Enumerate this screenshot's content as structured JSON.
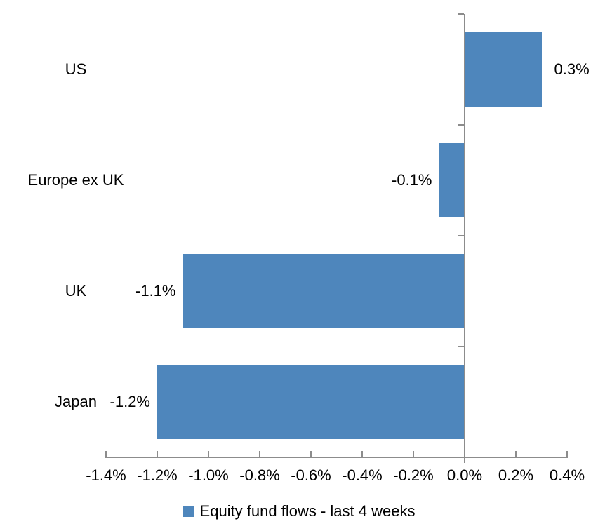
{
  "chart_data": {
    "type": "bar",
    "orientation": "horizontal",
    "title": "",
    "categories": [
      "US",
      "Europe ex UK",
      "UK",
      "Japan"
    ],
    "values": [
      0.3,
      -0.1,
      -1.1,
      -1.2
    ],
    "value_labels": [
      "0.3%",
      "-0.1%",
      "-1.1%",
      "-1.2%"
    ],
    "series_name": "Equity fund flows - last 4 weeks",
    "xlabel": "",
    "ylabel": "",
    "xlim": [
      -1.4,
      0.4
    ],
    "x_tick_values": [
      -1.4,
      -1.2,
      -1.0,
      -0.8,
      -0.6,
      -0.4,
      -0.2,
      0.0,
      0.2,
      0.4
    ],
    "x_tick_labels": [
      "-1.4%",
      "-1.2%",
      "-1.0%",
      "-0.8%",
      "-0.6%",
      "-0.4%",
      "-0.2%",
      "0.0%",
      "0.2%",
      "0.4%"
    ],
    "bar_color": "#4E86BC",
    "axis_color": "#8C8C8C",
    "text_color": "#000000",
    "grid": false,
    "legend_position": "bottom"
  }
}
